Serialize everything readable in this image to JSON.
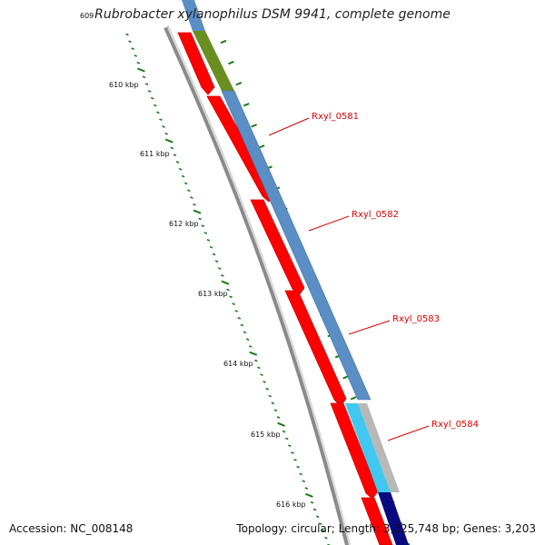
{
  "title": "Rubrobacter xylanophilus DSM 9941, complete genome",
  "accession": "Accession: NC_008148",
  "topology": "Topology: circular; Length: 3,225,748 bp; Genes: 3,203",
  "colors": {
    "background": "#ffffff",
    "backbone": "#8a8a8a",
    "forward_cds": "#ff0000",
    "reverse_track": "#5b8ec4",
    "olive_feature": "#6b8e23",
    "light_blue_feature": "#40c8f0",
    "navy_feature": "#0a0a80",
    "tick": "#1a7a1a",
    "gene_label": "#dd0000",
    "kbp_label": "#111111"
  },
  "kbp_labels": [
    "609",
    "610 kbp",
    "611 kbp",
    "612 kbp",
    "613 kbp",
    "614 kbp",
    "615 kbp",
    "616 kbp"
  ],
  "gene_labels": [
    "Rxyl_0581",
    "Rxyl_0582",
    "Rxyl_0583",
    "Rxyl_0584"
  ]
}
